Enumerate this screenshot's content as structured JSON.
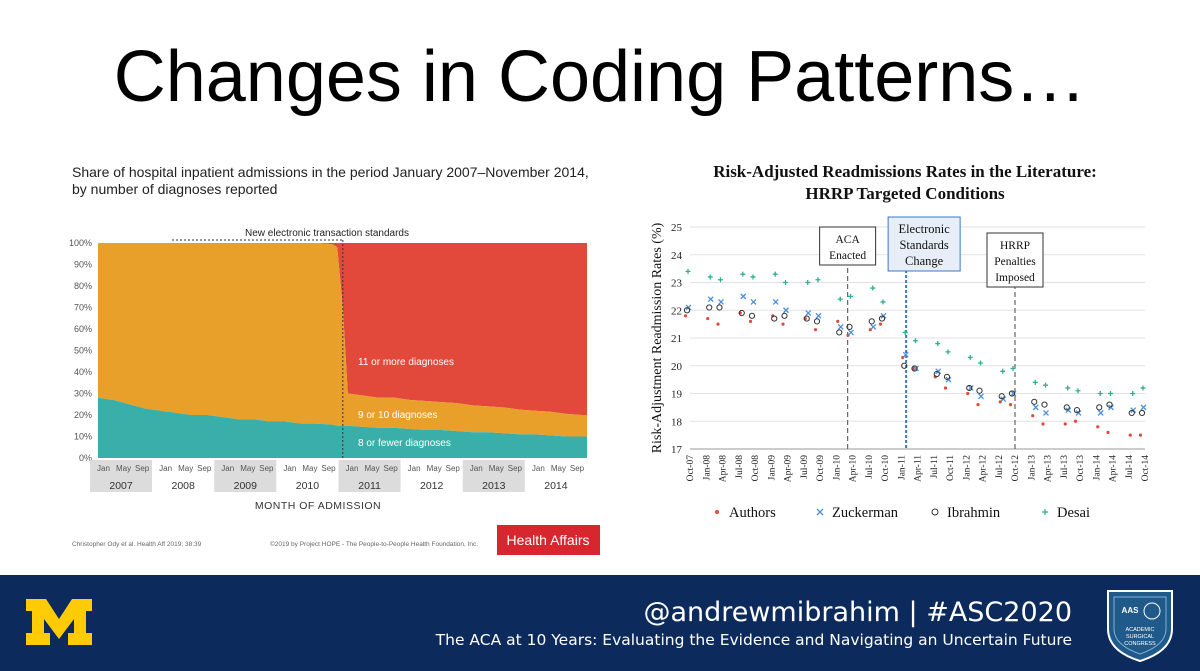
{
  "slide": {
    "title": "Changes in Coding Patterns…"
  },
  "footer": {
    "handle": "@andrewmibrahim | #ASC2020",
    "subtitle": "The ACA at 10 Years: Evaluating the Evidence and Navigating an Uncertain Future",
    "logo_left": "M",
    "badge_top": "AAS",
    "badge_text_1": "ACADEMIC",
    "badge_text_2": "SURGICAL",
    "badge_text_3": "CONGRESS",
    "colors": {
      "background": "#0c2a5c",
      "maize": "#ffcb05"
    }
  },
  "chart_data": [
    {
      "type": "area",
      "title": "Share of hospital inpatient admissions in the period January 2007–November 2014, by number of diagnoses reported",
      "xlabel": "MONTH OF ADMISSION",
      "ylabel": "",
      "ylim": [
        0,
        100
      ],
      "y_ticks": [
        "0%",
        "10%",
        "20%",
        "30%",
        "40%",
        "50%",
        "60%",
        "70%",
        "80%",
        "90%",
        "100%"
      ],
      "month_ticks": [
        "Jan",
        "May",
        "Sep"
      ],
      "years": [
        "2007",
        "2008",
        "2009",
        "2010",
        "2011",
        "2012",
        "2013",
        "2014"
      ],
      "annotation": "New electronic transaction standards",
      "source": "Christopher Ody et al. Health Aff 2019; 38:39",
      "copyright": "©2019 by Project HOPE - The People-to-People Health Foundation, Inc.",
      "publisher": "Health Affairs",
      "x": [
        2007.0,
        2007.25,
        2007.5,
        2007.75,
        2008.0,
        2008.25,
        2008.5,
        2008.75,
        2009.0,
        2009.25,
        2009.5,
        2009.75,
        2010.0,
        2010.25,
        2010.5,
        2010.75,
        2010.83,
        2010.92,
        2011.0,
        2011.25,
        2011.5,
        2011.75,
        2012.0,
        2012.25,
        2012.5,
        2012.75,
        2013.0,
        2013.25,
        2013.5,
        2013.75,
        2014.0,
        2014.25,
        2014.5,
        2014.75,
        2014.83
      ],
      "series": [
        {
          "name": "8 or fewer diagnoses",
          "color": "#3aafa9",
          "values": [
            28,
            27,
            25,
            23,
            22,
            21,
            20,
            20,
            19,
            18,
            18,
            17,
            17,
            16,
            16,
            15.5,
            15,
            15,
            15,
            14.5,
            14,
            14,
            13.5,
            13,
            13,
            12.5,
            12,
            12,
            11.5,
            11,
            11,
            10.5,
            10,
            10,
            10
          ]
        },
        {
          "name": "9 or 10 diagnoses",
          "color": "#e8a02b",
          "values": [
            72,
            73,
            75,
            77,
            78,
            79,
            80,
            80,
            81,
            82,
            82,
            83,
            83,
            84,
            84,
            84,
            83,
            55,
            15,
            14.5,
            14,
            14,
            13.5,
            13.5,
            13,
            13,
            12.5,
            12,
            12,
            11.5,
            11,
            11,
            10.5,
            10,
            10
          ]
        },
        {
          "name": "11 or more diagnoses",
          "color": "#e2493a",
          "values": [
            0,
            0,
            0,
            0,
            0,
            0,
            0,
            0,
            0,
            0,
            0,
            0,
            0,
            0,
            0,
            0.5,
            2,
            30,
            70,
            71,
            72,
            72,
            73,
            73.5,
            74,
            74.5,
            75.5,
            76,
            76.5,
            77.5,
            78,
            78.5,
            79.5,
            80,
            80
          ]
        }
      ]
    },
    {
      "type": "scatter",
      "title": "Risk-Adjusted Readmissions Rates in the Literature:",
      "subtitle": "HRRP Targeted Conditions",
      "xlabel": "",
      "ylabel": "Risk-Adjustment Readmission Rates (%)",
      "ylim": [
        17,
        25
      ],
      "y_ticks": [
        17,
        18,
        19,
        20,
        21,
        22,
        23,
        24,
        25
      ],
      "x_ticks": [
        "Oct-07",
        "Jan-08",
        "Apr-08",
        "Jul-08",
        "Oct-08",
        "Jan-09",
        "Apr-09",
        "Jul-09",
        "Oct-09",
        "Jan-10",
        "Apr-10",
        "Jul-10",
        "Oct-10",
        "Jan-11",
        "Apr-11",
        "Jul-11",
        "Oct-11",
        "Jan-12",
        "Apr-12",
        "Jul-12",
        "Oct-12",
        "Jan-13",
        "Apr-13",
        "Jul-13",
        "Oct-13",
        "Jan-14",
        "Apr-14",
        "Jul-14",
        "Oct-14"
      ],
      "annotations": [
        {
          "label_lines": [
            "ACA",
            "Enacted"
          ],
          "x_index": 9.7,
          "line_color": "#666666",
          "box_color": "#ffffff"
        },
        {
          "label_lines": [
            "Electronic",
            "Standards",
            "Change"
          ],
          "x_index": 13.3,
          "line_color": "#3a78c9",
          "box_color": "#e8eef7"
        },
        {
          "label_lines": [
            "HRRP",
            "Penalties",
            "Imposed"
          ],
          "x_index": 20.0,
          "line_color": "#666666",
          "box_color": "#ffffff"
        }
      ],
      "series": [
        {
          "name": "Authors",
          "marker": "•",
          "color": "#e2493a",
          "values": [
            21.8,
            21.7,
            21.5,
            21.9,
            21.6,
            21.8,
            21.5,
            21.7,
            21.3,
            21.6,
            21.1,
            21.3,
            21.5,
            20.3,
            19.9,
            19.6,
            19.2,
            19.0,
            18.6,
            18.7,
            18.6,
            18.2,
            17.9,
            17.9,
            18.0,
            17.8,
            17.6,
            17.5,
            17.5
          ]
        },
        {
          "name": "Zuckerman",
          "marker": "×",
          "color": "#4a90d9",
          "values": [
            22.1,
            22.4,
            22.3,
            22.5,
            22.3,
            22.3,
            22.0,
            21.9,
            21.8,
            21.4,
            21.2,
            21.4,
            21.8,
            20.4,
            19.9,
            19.8,
            19.5,
            19.2,
            18.9,
            18.8,
            19.0,
            18.5,
            18.3,
            18.4,
            18.3,
            18.3,
            18.5,
            18.4,
            18.5
          ]
        },
        {
          "name": "Ibrahmin",
          "marker": "○",
          "color": "#333333",
          "values": [
            22.0,
            22.1,
            22.1,
            21.9,
            21.8,
            21.7,
            21.8,
            21.7,
            21.6,
            21.2,
            21.4,
            21.6,
            21.7,
            20.0,
            19.9,
            19.7,
            19.6,
            19.2,
            19.1,
            18.9,
            19.0,
            18.7,
            18.6,
            18.5,
            18.4,
            18.5,
            18.6,
            18.3,
            18.3
          ]
        },
        {
          "name": "Desai",
          "marker": "+",
          "color": "#2fb090",
          "values": [
            23.4,
            23.2,
            23.1,
            23.3,
            23.2,
            23.3,
            23.0,
            23.0,
            23.1,
            22.4,
            22.5,
            22.8,
            22.3,
            21.2,
            20.9,
            20.8,
            20.5,
            20.3,
            20.1,
            19.8,
            19.9,
            19.4,
            19.3,
            19.2,
            19.1,
            19.0,
            19.0,
            19.0,
            19.2
          ]
        }
      ]
    }
  ]
}
